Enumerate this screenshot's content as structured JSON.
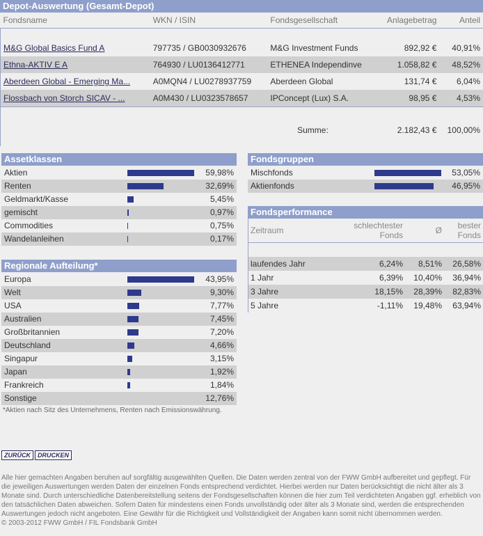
{
  "depot": {
    "title": "Depot-Auswertung (Gesamt-Depot)",
    "columns": [
      "Fondsname",
      "WKN / ISIN",
      "Fondsgesellschaft",
      "Anlagebetrag",
      "Anteil"
    ],
    "rows": [
      [
        "M&G Global Basics Fund A",
        "797735 / GB0030932676",
        "M&G Investment Funds",
        "892,92 €",
        "40,91%"
      ],
      [
        "Ethna-AKTIV E A",
        "764930 / LU0136412771",
        "ETHENEA Independinve",
        "1.058,82 €",
        "48,52%"
      ],
      [
        "Aberdeen Global - Emerging Ma...",
        "A0MQN4 / LU0278937759",
        "Aberdeen Global",
        "131,74 €",
        "6,04%"
      ],
      [
        "Flossbach von Storch SICAV - ...",
        "A0M430 / LU0323578657",
        "IPConcept (Lux) S.A.",
        "98,95 €",
        "4,53%"
      ]
    ],
    "sum_label": "Summe:",
    "sum_amount": "2.182,43 €",
    "sum_share": "100,00%"
  },
  "assetklassen": {
    "title": "Assetklassen",
    "items": [
      {
        "label": "Aktien",
        "value": 59.98,
        "text": "59,98%"
      },
      {
        "label": "Renten",
        "value": 32.69,
        "text": "32,69%"
      },
      {
        "label": "Geldmarkt/Kasse",
        "value": 5.45,
        "text": "5,45%"
      },
      {
        "label": "gemischt",
        "value": 0.97,
        "text": "0,97%"
      },
      {
        "label": "Commodities",
        "value": 0.75,
        "text": "0,75%"
      },
      {
        "label": "Wandelanleihen",
        "value": 0.17,
        "text": "0,17%"
      }
    ]
  },
  "regional": {
    "title": "Regionale Aufteilung*",
    "items": [
      {
        "label": "Europa",
        "value": 43.95,
        "text": "43,95%"
      },
      {
        "label": "Welt",
        "value": 9.3,
        "text": "9,30%"
      },
      {
        "label": "USA",
        "value": 7.77,
        "text": "7,77%"
      },
      {
        "label": "Australien",
        "value": 7.45,
        "text": "7,45%"
      },
      {
        "label": "Großbritannien",
        "value": 7.2,
        "text": "7,20%"
      },
      {
        "label": "Deutschland",
        "value": 4.66,
        "text": "4,66%"
      },
      {
        "label": "Singapur",
        "value": 3.15,
        "text": "3,15%"
      },
      {
        "label": "Japan",
        "value": 1.92,
        "text": "1,92%"
      },
      {
        "label": "Frankreich",
        "value": 1.84,
        "text": "1,84%"
      },
      {
        "label": "Sonstige",
        "value": 12.76,
        "text": "12,76%",
        "nobar": true
      }
    ],
    "note": "*Aktien nach Sitz des Unternehmens, Renten nach Emissionswährung."
  },
  "fondsgruppen": {
    "title": "Fondsgruppen",
    "items": [
      {
        "label": "Mischfonds",
        "value": 53.05,
        "text": "53,05%"
      },
      {
        "label": "Aktienfonds",
        "value": 46.95,
        "text": "46,95%"
      }
    ]
  },
  "performance": {
    "title": "Fondsperformance",
    "col_period": "Zeitraum",
    "col_worst": "schlechtester Fonds",
    "col_avg": "Ø",
    "col_best": "bester Fonds",
    "rows": [
      [
        "laufendes Jahr",
        "6,24%",
        "8,51%",
        "26,58%"
      ],
      [
        "1 Jahr",
        "6,39%",
        "10,40%",
        "36,94%"
      ],
      [
        "3 Jahre",
        "18,15%",
        "28,39%",
        "82,83%"
      ],
      [
        "5 Jahre",
        "-1,11%",
        "19,48%",
        "63,94%"
      ]
    ]
  },
  "buttons": {
    "back": "ZURÜCK",
    "print": "DRUCKEN"
  },
  "footer": {
    "disclaimer": "Alle hier gemachten Angaben beruhen auf sorgfältig ausgewählten Quellen. Die Daten werden zentral von der FWW GmbH aufbereitet und gepflegt. Für die jeweiligen Auswertungen werden Daten der einzelnen Fonds entsprechend verdichtet. Hierbei werden nur Daten berücksichtigt die nicht älter als 3 Monate sind. Durch unterschiedliche Datenbereitstellung seitens der Fondsgesellschaften können die hier zum Teil verdichteten Angaben ggf. erheblich von den tatsächlichen Daten abweichen. Sofern Daten für mindestens einen Fonds unvollständig oder älter als 3 Monate sind, werden die entsprechenden Auswertungen jedoch nicht angeboten. Eine Gewähr für die Richtigkeit und Vollständigkeit der Angaben kann somit nicht übernommen werden.",
    "copyright": "© 2003-2012 FWW GmbH / FIL Fondsbank GmbH"
  },
  "colors": {
    "header": "#8f9fcb",
    "bar": "#2e3a8c",
    "row_alt": "#d0d0d0",
    "link": "#2b2b5a"
  }
}
